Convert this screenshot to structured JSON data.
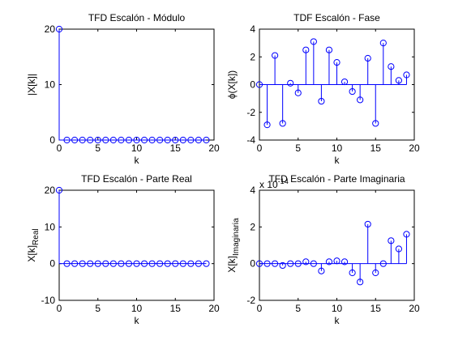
{
  "figure": {
    "background": "#ffffff",
    "stem_color": "#0000ff"
  },
  "chart_data": [
    {
      "type": "stem",
      "title": "TFD Escalón - Módulo",
      "xlabel": "k",
      "ylabel": "|X[k]|",
      "xlim": [
        0,
        20
      ],
      "ylim": [
        0,
        20
      ],
      "xticks": [
        0,
        5,
        10,
        15,
        20
      ],
      "yticks": [
        0,
        10,
        20
      ],
      "x": [
        0,
        1,
        2,
        3,
        4,
        5,
        6,
        7,
        8,
        9,
        10,
        11,
        12,
        13,
        14,
        15,
        16,
        17,
        18,
        19
      ],
      "values": [
        20,
        0,
        0,
        0,
        0,
        0,
        0,
        0,
        0,
        0,
        0,
        0,
        0,
        0,
        0,
        0,
        0,
        0,
        0,
        0
      ]
    },
    {
      "type": "stem",
      "title": "TDF Escalón - Fase",
      "xlabel": "k",
      "ylabel": "ϕ(X[k])",
      "xlim": [
        0,
        20
      ],
      "ylim": [
        -4,
        4
      ],
      "xticks": [
        0,
        5,
        10,
        15,
        20
      ],
      "yticks": [
        -4,
        -2,
        0,
        2,
        4
      ],
      "x": [
        0,
        1,
        2,
        3,
        4,
        5,
        6,
        7,
        8,
        9,
        10,
        11,
        12,
        13,
        14,
        15,
        16,
        17,
        18,
        19
      ],
      "values": [
        0,
        -2.9,
        2.1,
        -2.8,
        0.1,
        -0.6,
        2.5,
        3.1,
        -1.2,
        2.5,
        1.6,
        0.2,
        -0.5,
        -1.1,
        1.9,
        -2.8,
        3.0,
        1.3,
        0.3,
        0.7
      ]
    },
    {
      "type": "stem",
      "title": "TFD Escalón - Parte Real",
      "xlabel": "k",
      "ylabel": "X[k]",
      "ylabel_sub": "Real",
      "xlim": [
        0,
        20
      ],
      "ylim": [
        -10,
        20
      ],
      "xticks": [
        0,
        5,
        10,
        15,
        20
      ],
      "yticks": [
        -10,
        0,
        10,
        20
      ],
      "x": [
        0,
        1,
        2,
        3,
        4,
        5,
        6,
        7,
        8,
        9,
        10,
        11,
        12,
        13,
        14,
        15,
        16,
        17,
        18,
        19
      ],
      "values": [
        20,
        0,
        0,
        0,
        0,
        0,
        0,
        0,
        0,
        0,
        0,
        0,
        0,
        0,
        0,
        0,
        0,
        0,
        0,
        0
      ]
    },
    {
      "type": "stem",
      "title": "TFD Escalón - Parte Imaginaria",
      "xlabel": "k",
      "ylabel": "X[k]",
      "ylabel_sub": "Imaginaria",
      "exponent_label": "x 10",
      "exponent_power": "-14",
      "xlim": [
        0,
        20
      ],
      "ylim": [
        -2,
        4
      ],
      "xticks": [
        0,
        5,
        10,
        15,
        20
      ],
      "yticks": [
        -2,
        0,
        2,
        4
      ],
      "x": [
        0,
        1,
        2,
        3,
        4,
        5,
        6,
        7,
        8,
        9,
        10,
        11,
        12,
        13,
        14,
        15,
        16,
        17,
        18,
        19
      ],
      "values": [
        0,
        0,
        0,
        -0.1,
        0,
        0,
        0.1,
        0,
        -0.4,
        0.1,
        0.15,
        0.1,
        -0.5,
        -1.0,
        2.15,
        -0.5,
        0,
        1.25,
        0.8,
        1.6
      ]
    }
  ]
}
